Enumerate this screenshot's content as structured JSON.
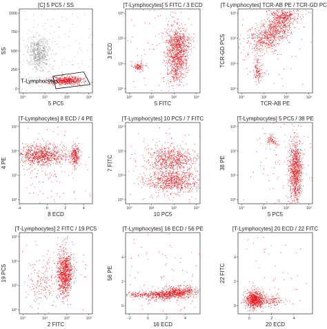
{
  "figure": {
    "background": "#ffffff",
    "dot_color_gated": "#e8141a",
    "dot_color_ungated": "#9a9a9a"
  },
  "chart_data": [
    {
      "type": "scatter",
      "title": "[C] 5 PC5 / SS",
      "xlabel": "5 PC5",
      "ylabel": "SS",
      "x_scale": "log",
      "y_scale": "linear",
      "x_ticks": [
        "10°",
        "10¹",
        "10²",
        "10³"
      ],
      "y_ticks": [
        "1000",
        "750",
        "500",
        "250",
        "0"
      ],
      "gate": {
        "label": "T-Lymphocytes",
        "shape": "polygon"
      },
      "populations": [
        {
          "color": "gray",
          "x": "10¹",
          "y": 370,
          "density": "high"
        },
        {
          "color": "red",
          "x": "10²",
          "y": 80,
          "density": "high",
          "gated": true
        },
        {
          "color": "gray",
          "spread": "diffuse",
          "density": "low"
        }
      ]
    },
    {
      "type": "scatter",
      "title": "[T-Lymphocytes] 5 FITC / 3 ECD",
      "xlabel": "5 FITC",
      "ylabel": "3 ECD",
      "x_scale": "log",
      "y_scale": "log",
      "x_ticks": [
        "10°",
        "10¹",
        "10²",
        "10³"
      ],
      "y_ticks": [
        "10³",
        "10²",
        "10¹",
        "10°"
      ],
      "populations": [
        {
          "color": "red",
          "x": "10¹",
          "y": "10¹",
          "density": "low"
        },
        {
          "color": "red",
          "x": "10²",
          "y": "10²",
          "density": "high"
        }
      ]
    },
    {
      "type": "scatter",
      "title": "[T-Lymphocytes] TCR-AB PE / TCR-GD PC5",
      "xlabel": "TCR-AB PE",
      "ylabel": "TCR-GD PC5",
      "x_scale": "log",
      "y_scale": "log",
      "x_ticks": [
        "10°",
        "10¹",
        "10²",
        "10³"
      ],
      "y_ticks": [
        "10³",
        "10²",
        "10¹",
        "10°"
      ],
      "populations": [
        {
          "color": "red",
          "x": "10²",
          "y": "10³",
          "density": "high"
        },
        {
          "color": "red",
          "x": "10¹",
          "y": "10¹",
          "density": "low"
        }
      ]
    },
    {
      "type": "scatter",
      "title": "[T-Lymphocytes] 8 ECD / 4 PE",
      "xlabel": "8 ECD",
      "ylabel": "4 PE",
      "x_scale": "linear",
      "y_scale": "log",
      "x_ticks": [
        "-4",
        "0",
        "2",
        "4"
      ],
      "y_ticks": [
        "10³",
        "10²",
        "10¹",
        "10°"
      ],
      "populations": [
        {
          "color": "red",
          "x": 0,
          "y": "10²",
          "density": "high"
        },
        {
          "color": "red",
          "x": 4,
          "y": "10²",
          "density": "medium"
        }
      ]
    },
    {
      "type": "scatter",
      "title": "[T-Lymphocytes] 10 PC5 / 7 FITC",
      "xlabel": "10 PC5",
      "ylabel": "7 FITC",
      "x_scale": "log",
      "y_scale": "log",
      "x_ticks": [
        "10°",
        "10¹",
        "10²",
        "10³"
      ],
      "y_ticks": [
        "10³",
        "10²",
        "10¹",
        "10°"
      ],
      "populations": [
        {
          "color": "red",
          "x": "10²",
          "y": "10²",
          "density": "high"
        },
        {
          "color": "red",
          "x": "10²",
          "y": "10°",
          "density": "high"
        }
      ]
    },
    {
      "type": "scatter",
      "title": "[T-Lymphocytes] 5 PC5 / 38 PE",
      "xlabel": "5 PC5",
      "ylabel": "38 PE",
      "x_scale": "log",
      "y_scale": "log",
      "x_ticks": [
        "10°",
        "10¹",
        "10²",
        "10³"
      ],
      "y_ticks": [
        "10³",
        "10²",
        "10¹",
        "10°"
      ],
      "populations": [
        {
          "color": "red",
          "x": "10²",
          "y": "10¹",
          "density": "high"
        },
        {
          "color": "red",
          "x": "10¹",
          "y": "10²",
          "density": "low"
        }
      ]
    },
    {
      "type": "scatter",
      "title": "[T-Lymphocytes] 2 FITC / 19 PC5",
      "xlabel": "2 FITC",
      "ylabel": "19 PC5",
      "x_scale": "log",
      "y_scale": "log",
      "x_ticks": [
        "10°",
        "10¹",
        "10²",
        "10³"
      ],
      "y_ticks": [
        "10³",
        "10²",
        "10¹",
        "10°"
      ],
      "populations": [
        {
          "color": "red",
          "x": "10²",
          "y": "10¹",
          "density": "high"
        },
        {
          "color": "red",
          "x": "10¹",
          "y": "10¹",
          "density": "low"
        }
      ]
    },
    {
      "type": "scatter",
      "title": "[T-Lymphocytes] 16 ECD / 56 PE",
      "xlabel": "16 ECD",
      "ylabel": "56 PE",
      "x_scale": "linear",
      "y_scale": "linear",
      "x_ticks": [
        "-2",
        "0",
        "2",
        "4"
      ],
      "y_ticks": [
        "4",
        "2",
        "0"
      ],
      "populations": [
        {
          "color": "red",
          "x": 3,
          "y": 0,
          "density": "high"
        },
        {
          "color": "red",
          "x": 0,
          "y": 0,
          "density": "medium"
        }
      ]
    },
    {
      "type": "scatter",
      "title": "[T-Lymphocytes] 20 ECD / 22 FITC",
      "xlabel": "20 ECD",
      "ylabel": "22 FITC",
      "x_scale": "linear",
      "y_scale": "linear",
      "x_ticks": [
        "0",
        "2",
        "4"
      ],
      "y_ticks": [
        "4",
        "2",
        "0"
      ],
      "populations": [
        {
          "color": "red",
          "x": 0,
          "y": 0,
          "density": "high"
        }
      ]
    }
  ]
}
